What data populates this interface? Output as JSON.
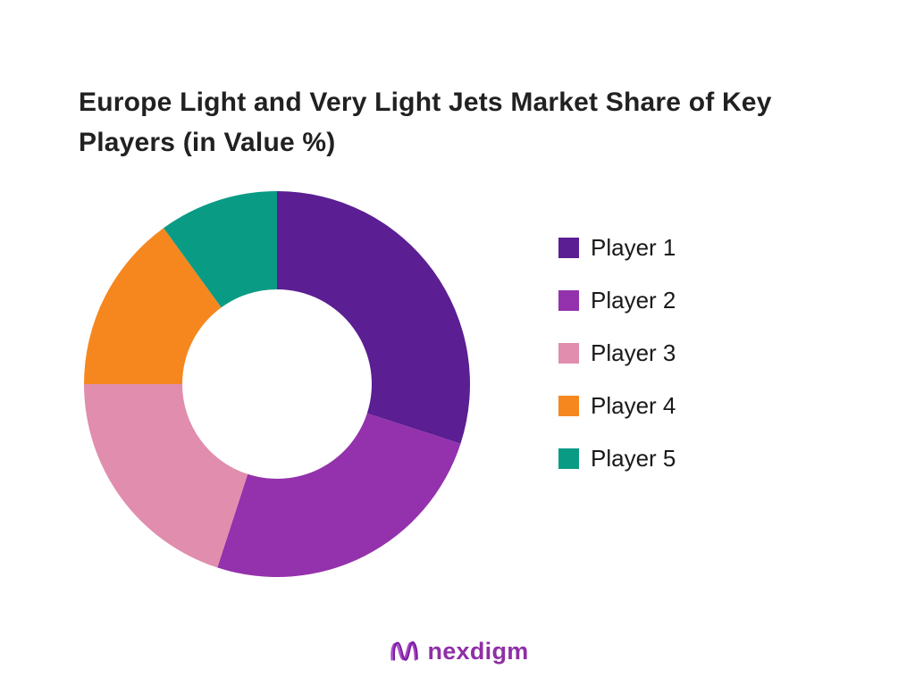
{
  "page": {
    "background_color": "#ffffff"
  },
  "title": "Europe Light and Very Light Jets Market Share of Key Players (in Value %)",
  "chart_data": {
    "type": "pie",
    "subtype": "donut",
    "title": "Europe Light and Very Light Jets Market Share of Key Players (in Value %)",
    "categories": [
      "Player 1",
      "Player 2",
      "Player 3",
      "Player 4",
      "Player 5"
    ],
    "values": [
      30,
      25,
      20,
      15,
      10
    ],
    "unit": "%",
    "colors": [
      "#5B1E93",
      "#9431AC",
      "#E18DAD",
      "#F6871F",
      "#0A9B85"
    ],
    "start_angle_deg": -90,
    "direction": "clockwise",
    "inner_radius_ratio": 0.49,
    "legend_position": "right",
    "data_labels_shown": false
  },
  "footer": {
    "logo_text": "nexdigm",
    "logo_color": "#8F2FA6",
    "logo_icon_color_light": "#A946C9",
    "logo_icon_color_dark": "#7B1FA2"
  }
}
